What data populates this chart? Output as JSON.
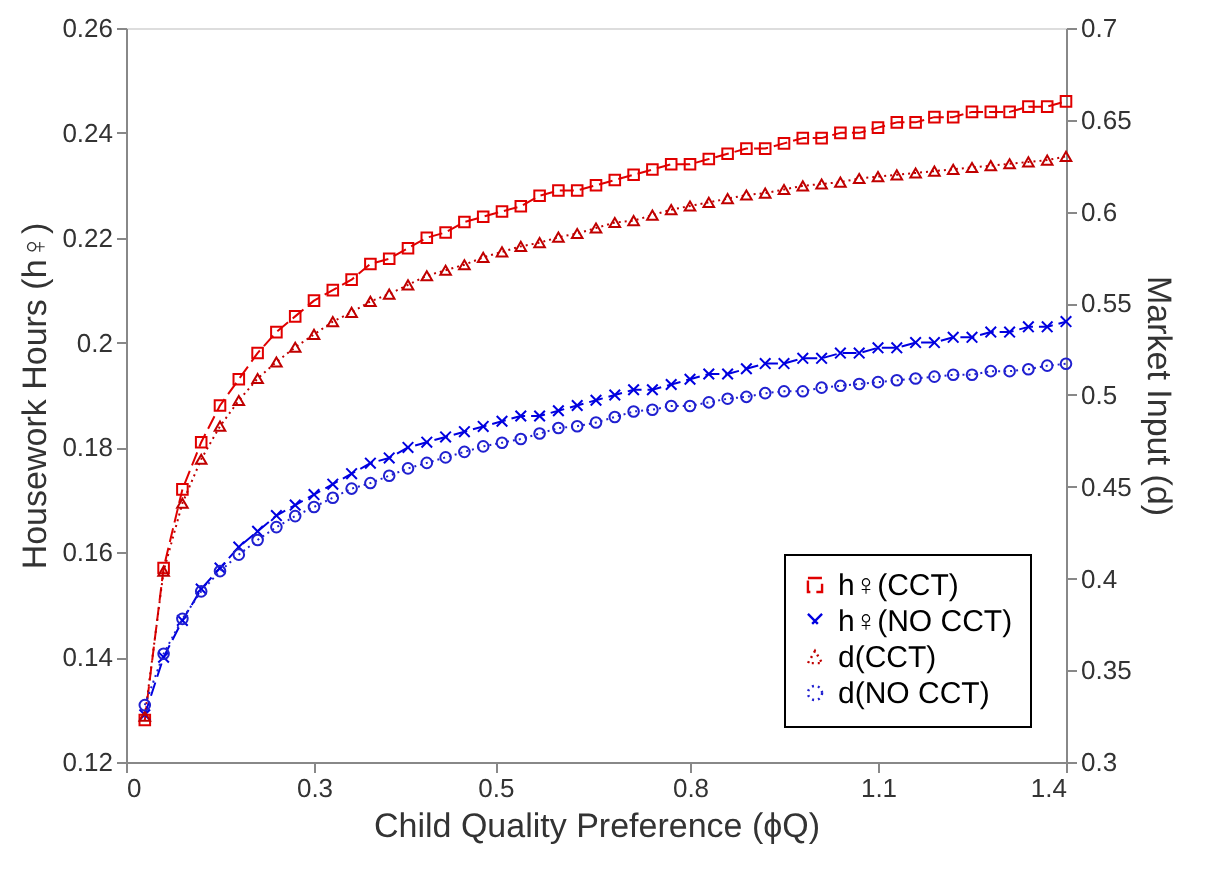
{
  "chart_data": {
    "type": "line",
    "xlabel": "Child Quality Preference (ϕQ)",
    "ylabel": "Housework Hours (h♀)",
    "y2label": "Market Input (d)",
    "x": [
      0.028,
      0.056,
      0.084,
      0.112,
      0.14,
      0.168,
      0.196,
      0.224,
      0.252,
      0.28,
      0.308,
      0.336,
      0.364,
      0.392,
      0.42,
      0.448,
      0.476,
      0.504,
      0.532,
      0.56,
      0.588,
      0.616,
      0.644,
      0.672,
      0.7,
      0.728,
      0.756,
      0.784,
      0.812,
      0.84,
      0.868,
      0.896,
      0.924,
      0.952,
      0.98,
      1.008,
      1.036,
      1.064,
      1.092,
      1.12,
      1.148,
      1.176,
      1.204,
      1.232,
      1.26,
      1.288,
      1.316,
      1.344,
      1.372,
      1.4
    ],
    "xlim": [
      0,
      1.4
    ],
    "xticks": [
      0,
      {
        "value": 0.28,
        "label": "0.3"
      },
      {
        "value": 0.55,
        "label": "0.5"
      },
      {
        "value": 0.84,
        "label": "0.8"
      },
      {
        "value": 1.12,
        "label": "1.1"
      },
      1.4
    ],
    "ylim": [
      0.12,
      0.26
    ],
    "yticks": [
      0.12,
      0.14,
      0.16,
      0.18,
      0.2,
      0.22,
      0.24,
      0.26
    ],
    "y2lim": [
      0.3,
      0.7
    ],
    "y2ticks": [
      0.3,
      0.35,
      0.4,
      0.45,
      0.5,
      0.55,
      0.6,
      0.65,
      0.7
    ],
    "grid": false,
    "legend": "bottom right",
    "series": [
      {
        "name": "h♀(CCT)",
        "color": "#e00000",
        "marker": "square",
        "line_style": "dashed",
        "values": [
          0.128,
          0.157,
          0.172,
          0.181,
          0.188,
          0.193,
          0.198,
          0.202,
          0.205,
          0.208,
          0.21,
          0.212,
          0.215,
          0.216,
          0.218,
          0.22,
          0.221,
          0.223,
          0.224,
          0.225,
          0.226,
          0.228,
          0.229,
          0.229,
          0.23,
          0.231,
          0.232,
          0.233,
          0.234,
          0.234,
          0.235,
          0.236,
          0.237,
          0.237,
          0.238,
          0.239,
          0.239,
          0.24,
          0.24,
          0.241,
          0.242,
          0.242,
          0.243,
          0.243,
          0.244,
          0.244,
          0.244,
          0.245,
          0.245,
          0.246
        ]
      },
      {
        "name": "h♀(NO CCT)",
        "color": "#0000e0",
        "marker": "cross",
        "line_style": "dashed",
        "values": [
          0.129,
          0.14,
          0.147,
          0.153,
          0.157,
          0.161,
          0.164,
          0.167,
          0.169,
          0.171,
          0.173,
          0.175,
          0.177,
          0.178,
          0.18,
          0.181,
          0.182,
          0.183,
          0.184,
          0.185,
          0.186,
          0.186,
          0.187,
          0.188,
          0.189,
          0.19,
          0.191,
          0.191,
          0.192,
          0.193,
          0.194,
          0.194,
          0.195,
          0.196,
          0.196,
          0.197,
          0.197,
          0.198,
          0.198,
          0.199,
          0.199,
          0.2,
          0.2,
          0.201,
          0.201,
          0.202,
          0.202,
          0.203,
          0.203,
          0.204
        ]
      },
      {
        "name": "d(CCT)",
        "color": "#c00000",
        "marker": "triangle",
        "line_style": "dotted",
        "axis": "y2",
        "values": [
          0.325,
          0.404,
          0.441,
          0.465,
          0.483,
          0.497,
          0.509,
          0.518,
          0.526,
          0.533,
          0.54,
          0.545,
          0.551,
          0.555,
          0.56,
          0.565,
          0.568,
          0.571,
          0.575,
          0.578,
          0.581,
          0.583,
          0.586,
          0.588,
          0.591,
          0.594,
          0.595,
          0.598,
          0.601,
          0.603,
          0.605,
          0.607,
          0.609,
          0.61,
          0.612,
          0.614,
          0.615,
          0.616,
          0.618,
          0.619,
          0.62,
          0.621,
          0.622,
          0.623,
          0.624,
          0.625,
          0.626,
          0.627,
          0.628,
          0.63
        ]
      },
      {
        "name": "d(NO CCT)",
        "color": "#2020d0",
        "marker": "circle",
        "line_style": "dotted",
        "axis": "y2",
        "values": [
          0.331,
          0.359,
          0.378,
          0.393,
          0.404,
          0.413,
          0.421,
          0.428,
          0.434,
          0.439,
          0.444,
          0.449,
          0.452,
          0.456,
          0.46,
          0.463,
          0.466,
          0.469,
          0.472,
          0.474,
          0.476,
          0.479,
          0.482,
          0.483,
          0.485,
          0.488,
          0.491,
          0.492,
          0.494,
          0.494,
          0.496,
          0.498,
          0.499,
          0.501,
          0.502,
          0.502,
          0.504,
          0.505,
          0.506,
          0.507,
          0.508,
          0.509,
          0.51,
          0.511,
          0.511,
          0.513,
          0.513,
          0.514,
          0.516,
          0.517
        ]
      }
    ]
  }
}
